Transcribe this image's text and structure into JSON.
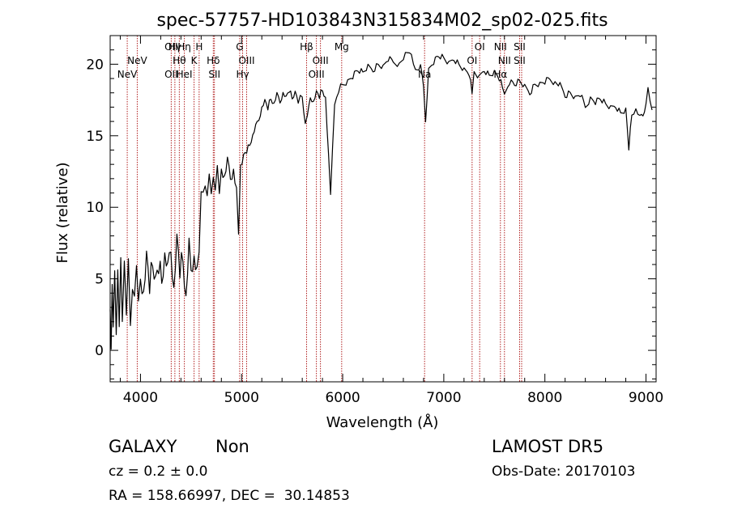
{
  "chart_data": {
    "type": "line",
    "title": "spec-57757-HD103843N315834M02_sp02-025.fits",
    "xlabel": "Wavelength (Å)",
    "ylabel": "Flux (relative)",
    "xlim": [
      3700,
      9100
    ],
    "ylim": [
      -2.2,
      22
    ],
    "x_ticks": [
      4000,
      5000,
      6000,
      7000,
      8000,
      9000
    ],
    "y_ticks": [
      0,
      5,
      10,
      15,
      20
    ],
    "grid": false,
    "line_color": "#000000",
    "marker_color": "#b22222",
    "series": [
      {
        "points": [
          [
            3700,
            2
          ],
          [
            3710,
            0.5
          ],
          [
            3720,
            4.5
          ],
          [
            3730,
            1.0
          ],
          [
            3745,
            6.2
          ],
          [
            3760,
            1.2
          ],
          [
            3775,
            5.2
          ],
          [
            3790,
            2.5
          ],
          [
            3805,
            6.8
          ],
          [
            3820,
            1.8
          ],
          [
            3840,
            5.5
          ],
          [
            3860,
            3.0
          ],
          [
            3880,
            6.4
          ],
          [
            3900,
            1.2
          ],
          [
            3920,
            5.0
          ],
          [
            3940,
            4.0
          ],
          [
            3960,
            5.6
          ],
          [
            3980,
            2.6
          ],
          [
            4000,
            5.4
          ],
          [
            4030,
            4.0
          ],
          [
            4060,
            6.3
          ],
          [
            4090,
            4.6
          ],
          [
            4120,
            6.0
          ],
          [
            4150,
            4.8
          ],
          [
            4180,
            6.2
          ],
          [
            4210,
            5.0
          ],
          [
            4240,
            6.6
          ],
          [
            4270,
            5.4
          ],
          [
            4300,
            7.4
          ],
          [
            4330,
            4.4
          ],
          [
            4360,
            7.6
          ],
          [
            4390,
            5.8
          ],
          [
            4420,
            6.4
          ],
          [
            4450,
            3.5
          ],
          [
            4480,
            7.0
          ],
          [
            4500,
            6.0
          ],
          [
            4530,
            6.5
          ],
          [
            4560,
            5.2
          ],
          [
            4580,
            7.5
          ],
          [
            4600,
            11.2
          ],
          [
            4620,
            10.8
          ],
          [
            4640,
            12.0
          ],
          [
            4660,
            11.0
          ],
          [
            4680,
            12.2
          ],
          [
            4700,
            10.5
          ],
          [
            4720,
            12.4
          ],
          [
            4740,
            11.2
          ],
          [
            4760,
            12.6
          ],
          [
            4780,
            11.4
          ],
          [
            4800,
            12.8
          ],
          [
            4830,
            12.0
          ],
          [
            4860,
            13.0
          ],
          [
            4890,
            12.2
          ],
          [
            4920,
            12.6
          ],
          [
            4950,
            11.0
          ],
          [
            4970,
            8.5
          ],
          [
            4990,
            13.0
          ],
          [
            5020,
            13.6
          ],
          [
            5050,
            14.0
          ],
          [
            5080,
            14.4
          ],
          [
            5110,
            15.0
          ],
          [
            5140,
            15.6
          ],
          [
            5170,
            16.2
          ],
          [
            5200,
            17.0
          ],
          [
            5230,
            17.4
          ],
          [
            5260,
            17.0
          ],
          [
            5290,
            17.6
          ],
          [
            5320,
            17.2
          ],
          [
            5350,
            17.8
          ],
          [
            5380,
            17.4
          ],
          [
            5410,
            18.0
          ],
          [
            5440,
            17.6
          ],
          [
            5470,
            18.2
          ],
          [
            5500,
            17.6
          ],
          [
            5530,
            18.0
          ],
          [
            5560,
            17.5
          ],
          [
            5600,
            17.8
          ],
          [
            5630,
            15.8
          ],
          [
            5650,
            16.2
          ],
          [
            5680,
            17.8
          ],
          [
            5710,
            17.4
          ],
          [
            5740,
            18.0
          ],
          [
            5770,
            17.8
          ],
          [
            5800,
            18.2
          ],
          [
            5830,
            17.6
          ],
          [
            5860,
            13.5
          ],
          [
            5880,
            11.0
          ],
          [
            5900,
            14.2
          ],
          [
            5920,
            17.0
          ],
          [
            5960,
            18.2
          ],
          [
            6000,
            18.6
          ],
          [
            6050,
            18.8
          ],
          [
            6100,
            19.2
          ],
          [
            6150,
            19.6
          ],
          [
            6200,
            19.4
          ],
          [
            6250,
            19.8
          ],
          [
            6300,
            19.6
          ],
          [
            6350,
            20.0
          ],
          [
            6400,
            19.8
          ],
          [
            6450,
            20.4
          ],
          [
            6500,
            20.2
          ],
          [
            6560,
            20.0
          ],
          [
            6620,
            20.6
          ],
          [
            6680,
            20.8
          ],
          [
            6720,
            19.6
          ],
          [
            6770,
            19.8
          ],
          [
            6800,
            18.6
          ],
          [
            6820,
            16.0
          ],
          [
            6850,
            19.6
          ],
          [
            6900,
            20.2
          ],
          [
            6950,
            20.6
          ],
          [
            7000,
            20.4
          ],
          [
            7050,
            20.0
          ],
          [
            7100,
            20.4
          ],
          [
            7150,
            20.0
          ],
          [
            7200,
            19.6
          ],
          [
            7250,
            19.4
          ],
          [
            7280,
            18.0
          ],
          [
            7300,
            19.4
          ],
          [
            7350,
            19.0
          ],
          [
            7400,
            19.6
          ],
          [
            7450,
            19.2
          ],
          [
            7500,
            19.4
          ],
          [
            7550,
            19.0
          ],
          [
            7580,
            18.4
          ],
          [
            7600,
            17.8
          ],
          [
            7650,
            18.8
          ],
          [
            7700,
            18.6
          ],
          [
            7750,
            18.8
          ],
          [
            7800,
            18.4
          ],
          [
            7850,
            18.0
          ],
          [
            7900,
            18.6
          ],
          [
            7950,
            18.6
          ],
          [
            8000,
            18.8
          ],
          [
            8050,
            19.0
          ],
          [
            8100,
            18.7
          ],
          [
            8150,
            18.5
          ],
          [
            8200,
            17.8
          ],
          [
            8250,
            18.0
          ],
          [
            8300,
            17.6
          ],
          [
            8350,
            17.9
          ],
          [
            8400,
            17.0
          ],
          [
            8450,
            17.6
          ],
          [
            8500,
            17.4
          ],
          [
            8550,
            17.6
          ],
          [
            8600,
            17.2
          ],
          [
            8650,
            16.9
          ],
          [
            8700,
            17.1
          ],
          [
            8750,
            16.6
          ],
          [
            8800,
            16.8
          ],
          [
            8830,
            14.2
          ],
          [
            8860,
            16.5
          ],
          [
            8900,
            16.8
          ],
          [
            8940,
            16.2
          ],
          [
            8970,
            16.5
          ],
          [
            9000,
            17.2
          ],
          [
            9020,
            18.2
          ],
          [
            9040,
            17.6
          ],
          [
            9060,
            16.8
          ]
        ]
      }
    ],
    "lines": [
      {
        "wl": 3869,
        "labels": [
          {
            "text": "NeV",
            "row": 2
          }
        ]
      },
      {
        "wl": 3968,
        "labels": [
          {
            "text": "NeV",
            "row": 1
          }
        ]
      },
      {
        "wl": 4304,
        "labels": [
          {
            "text": "OII",
            "row": 0
          },
          {
            "text": "OII",
            "row": 2
          }
        ]
      },
      {
        "wl": 4340,
        "labels": [
          {
            "text": "Hγ",
            "row": 0
          }
        ]
      },
      {
        "wl": 4384,
        "labels": [
          {
            "text": "Hθ",
            "row": 1
          }
        ]
      },
      {
        "wl": 4434,
        "labels": [
          {
            "text": "Hη",
            "row": 0
          },
          {
            "text": "HeI",
            "row": 2
          }
        ]
      },
      {
        "wl": 4530,
        "labels": [
          {
            "text": "K",
            "row": 1
          }
        ]
      },
      {
        "wl": 4580,
        "labels": [
          {
            "text": "H",
            "row": 0
          }
        ]
      },
      {
        "wl": 4720,
        "labels": [
          {
            "text": "Hδ",
            "row": 1
          }
        ]
      },
      {
        "wl": 4731,
        "labels": [
          {
            "text": "SII",
            "row": 2
          }
        ]
      },
      {
        "wl": 4981,
        "labels": [
          {
            "text": "G",
            "row": 0
          }
        ]
      },
      {
        "wl": 5010,
        "labels": [
          {
            "text": "Hγ",
            "row": 2
          }
        ]
      },
      {
        "wl": 5050,
        "labels": [
          {
            "text": "OIII",
            "row": 1
          }
        ]
      },
      {
        "wl": 5643,
        "labels": [
          {
            "text": "Hβ",
            "row": 0
          }
        ]
      },
      {
        "wl": 5740,
        "labels": [
          {
            "text": "OIII",
            "row": 2
          }
        ]
      },
      {
        "wl": 5780,
        "labels": [
          {
            "text": "OIII",
            "row": 1
          }
        ]
      },
      {
        "wl": 5990,
        "labels": [
          {
            "text": "Mg",
            "row": 0
          }
        ]
      },
      {
        "wl": 6810,
        "labels": [
          {
            "text": "Na",
            "row": 2
          }
        ]
      },
      {
        "wl": 7280,
        "labels": [
          {
            "text": "OI",
            "row": 1
          }
        ]
      },
      {
        "wl": 7355,
        "labels": [
          {
            "text": "OI",
            "row": 0
          }
        ]
      },
      {
        "wl": 7560,
        "labels": [
          {
            "text": "NII",
            "row": 0
          },
          {
            "text": "Hα",
            "row": 2
          }
        ]
      },
      {
        "wl": 7600,
        "labels": [
          {
            "text": "NII",
            "row": 1
          }
        ]
      },
      {
        "wl": 7750,
        "labels": [
          {
            "text": "SII",
            "row": 0
          },
          {
            "text": "SII",
            "row": 1
          }
        ]
      },
      {
        "wl": 7770,
        "labels": []
      }
    ]
  },
  "info": {
    "object_class": "GALAXY",
    "subclass": "Non",
    "cz": "cz = 0.2 ± 0.0",
    "radec": "RA = 158.66997, DEC =  30.14853",
    "survey": "LAMOST DR5",
    "obs_date": "Obs-Date: 20170103"
  }
}
